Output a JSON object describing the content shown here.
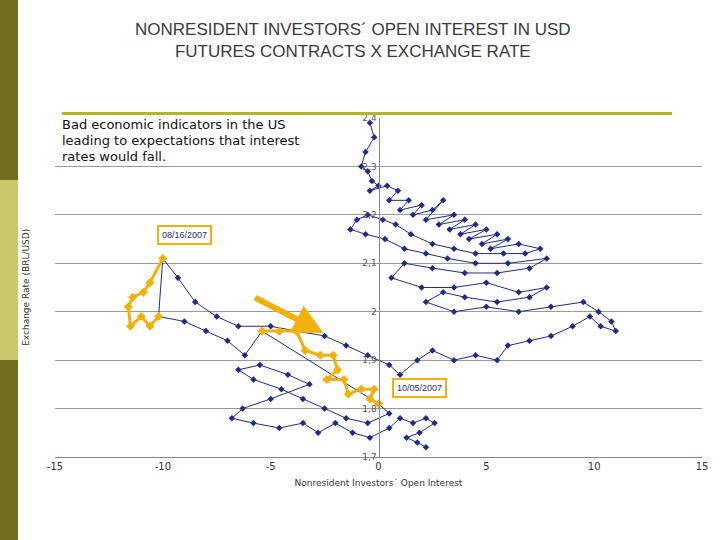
{
  "chart_data": {
    "type": "scatter",
    "title": "NONRESIDENT INVESTORS´ OPEN INTEREST IN USD\nFUTURES CONTRACTS X EXCHANGE RATE",
    "x_label": "Nonresident Investors´ Open Interest",
    "y_label": "Exchange Rate (BRL/USD)",
    "annotations": [
      "Bad economic indicators in the US leading to expectations that interest rates would fall.",
      "08/16/2007",
      "10/05/2007"
    ],
    "xlim": [
      -15,
      15
    ],
    "xticks": [
      -15,
      -10,
      -5,
      0,
      5,
      10,
      15
    ],
    "ylim": [
      1.7,
      2.4
    ],
    "yticks": [
      {
        "value": 1.7,
        "label": "1,7"
      },
      {
        "value": 1.8,
        "label": "1,8"
      },
      {
        "value": 1.9,
        "label": "1,9"
      },
      2,
      {
        "value": 2.1,
        "label": "2,1"
      },
      {
        "value": 2.2,
        "label": "2,2"
      },
      {
        "value": 2.3,
        "label": "2,3"
      },
      {
        "value": 2.4,
        "label": "2,4"
      }
    ],
    "grid": true,
    "series": [
      {
        "color": "#1f2d86",
        "marker": "diamond",
        "line_style": "solid",
        "x": [
          -0.4,
          -0.2,
          -0.6,
          -0.8,
          -0.5,
          -0.3,
          0.0,
          -0.4,
          0.4,
          0.9,
          0.5,
          1.4,
          1.0,
          2.0,
          1.6,
          2.5,
          3.0,
          2.2,
          3.5,
          2.8,
          4.0,
          3.3,
          4.5,
          3.8,
          5.0,
          4.2,
          5.5,
          4.8,
          6.0,
          5.2,
          6.5,
          7.5,
          6.8,
          5.8,
          4.5,
          3.5,
          2.5,
          1.5,
          0.8,
          0.2,
          -0.5,
          -1.0,
          -1.3,
          -0.6,
          0.3,
          1.2,
          2.2,
          3.2,
          4.5,
          6.0,
          7.8,
          7.0,
          5.5,
          4.0,
          2.5,
          1.2,
          0.6,
          2.0,
          3.5,
          5.0,
          6.5,
          7.8,
          7.0,
          5.5,
          4.0,
          3.0,
          2.2,
          3.5,
          5.0,
          6.5,
          8.0,
          9.5,
          10.2,
          10.8,
          11.0,
          10.3,
          9.8,
          9.0,
          8.0,
          7.0,
          6.0,
          5.5,
          4.5,
          3.5,
          2.5,
          1.8,
          1.0,
          0.5,
          -0.5,
          -1.5,
          -2.5,
          -3.8,
          -5.0,
          -6.5,
          -7.5,
          -8.5,
          -9.3,
          -10.0,
          -10.2,
          -9.0,
          -8.0,
          -7.0,
          -6.2,
          -5.4,
          0.0,
          0.5,
          -0.5,
          -1.5,
          -2.5,
          -3.5,
          -4.5,
          -5.8,
          -6.5,
          -5.5,
          -4.2,
          -3.2,
          -5.0,
          -6.3,
          -6.8,
          -5.8,
          -4.6,
          -3.5,
          -2.8,
          -2.0,
          -1.2,
          -0.4,
          0.5,
          1.0,
          1.6,
          2.2,
          2.6,
          1.9,
          1.3,
          1.8,
          2.2
        ],
        "y": [
          2.39,
          2.36,
          2.33,
          2.3,
          2.29,
          2.27,
          2.26,
          2.25,
          2.26,
          2.25,
          2.23,
          2.23,
          2.21,
          2.22,
          2.2,
          2.21,
          2.23,
          2.19,
          2.2,
          2.18,
          2.19,
          2.17,
          2.18,
          2.16,
          2.17,
          2.15,
          2.16,
          2.14,
          2.15,
          2.13,
          2.14,
          2.13,
          2.12,
          2.12,
          2.12,
          2.13,
          2.14,
          2.16,
          2.18,
          2.19,
          2.2,
          2.19,
          2.17,
          2.16,
          2.15,
          2.13,
          2.12,
          2.11,
          2.1,
          2.1,
          2.11,
          2.09,
          2.08,
          2.08,
          2.09,
          2.1,
          2.07,
          2.05,
          2.05,
          2.06,
          2.04,
          2.05,
          2.03,
          2.02,
          2.03,
          2.04,
          2.02,
          2.0,
          2.01,
          2.0,
          2.01,
          2.02,
          2.0,
          1.98,
          1.96,
          1.97,
          1.99,
          1.97,
          1.95,
          1.94,
          1.93,
          1.9,
          1.91,
          1.9,
          1.92,
          1.9,
          1.87,
          1.89,
          1.91,
          1.93,
          1.95,
          1.96,
          1.97,
          1.97,
          1.99,
          2.02,
          2.07,
          2.11,
          1.99,
          1.98,
          1.96,
          1.94,
          1.91,
          1.96,
          1.81,
          1.79,
          1.77,
          1.78,
          1.8,
          1.82,
          1.84,
          1.86,
          1.88,
          1.89,
          1.87,
          1.85,
          1.82,
          1.8,
          1.78,
          1.77,
          1.76,
          1.77,
          1.75,
          1.77,
          1.75,
          1.74,
          1.76,
          1.78,
          1.77,
          1.78,
          1.77,
          1.75,
          1.74,
          1.73,
          1.72
        ]
      },
      {
        "color": "#f2b10a",
        "marker": "diamond",
        "line_style": "solid",
        "x": [
          -10.0,
          -10.6,
          -10.9,
          -11.4,
          -11.6,
          -11.5,
          -11.0,
          -10.6,
          -10.2,
          null,
          -5.4,
          -4.6,
          -3.8,
          -3.4,
          -2.7,
          -2.1,
          -1.9,
          -2.4,
          -1.6,
          -1.4,
          -0.8,
          -0.2,
          -0.4,
          0.0
        ],
        "y": [
          2.11,
          2.06,
          2.04,
          2.03,
          2.01,
          1.97,
          1.99,
          1.97,
          1.99,
          null,
          1.96,
          1.96,
          1.96,
          1.92,
          1.91,
          1.91,
          1.88,
          1.86,
          1.86,
          1.83,
          1.84,
          1.84,
          1.82,
          1.81
        ]
      }
    ]
  }
}
